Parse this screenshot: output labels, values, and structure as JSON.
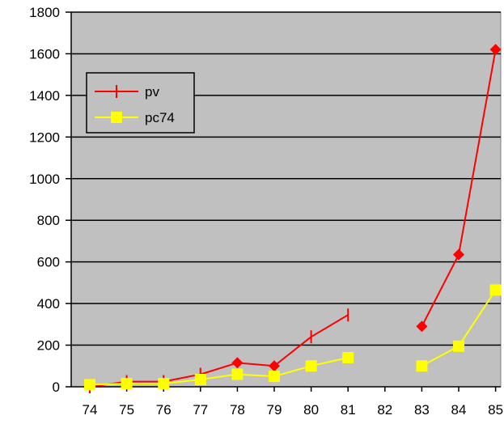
{
  "chart_data": {
    "type": "line",
    "title": "",
    "xlabel": "",
    "ylabel": "",
    "categories": [
      "74",
      "75",
      "76",
      "77",
      "78",
      "79",
      "80",
      "81",
      "82",
      "83",
      "84",
      "85"
    ],
    "ylim": [
      0,
      1800
    ],
    "yticks": [
      0,
      200,
      400,
      600,
      800,
      1000,
      1200,
      1400,
      1600,
      1800
    ],
    "grid": "horizontal",
    "plot_background": "#c0c0c0",
    "legend_position": "upper-left",
    "series": [
      {
        "name": "pv",
        "color": "#ff0000",
        "marker": "plus",
        "diamond_marker_indices": [
          4,
          5,
          9,
          10,
          11
        ],
        "values": [
          0,
          25,
          25,
          60,
          115,
          100,
          240,
          345,
          null,
          290,
          635,
          1620
        ]
      },
      {
        "name": "pc74",
        "color": "#ffff00",
        "marker": "square",
        "values": [
          10,
          15,
          15,
          35,
          60,
          50,
          100,
          140,
          null,
          100,
          195,
          465
        ]
      }
    ]
  }
}
